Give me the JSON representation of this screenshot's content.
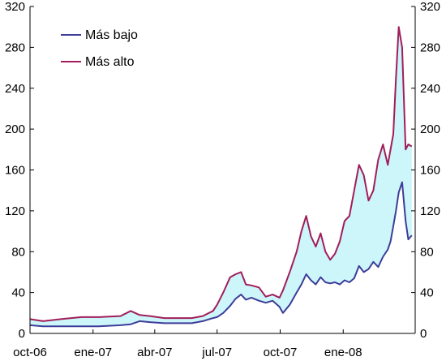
{
  "chart_data": {
    "type": "line",
    "title": "",
    "xlabel": "",
    "ylabel": "",
    "ylim": [
      0,
      320
    ],
    "yticks": [
      0,
      40,
      80,
      120,
      160,
      200,
      240,
      280,
      320
    ],
    "ytick_labels": [
      "0",
      "40",
      "80",
      "120",
      "160",
      "200",
      "240",
      "280",
      "320"
    ],
    "y_axis_both_sides": true,
    "grid": false,
    "x_range": [
      "2006-10-01",
      "2008-04-15"
    ],
    "xticks": [
      "2006-10-01",
      "2007-01-01",
      "2007-04-01",
      "2007-07-01",
      "2007-10-01",
      "2008-01-01"
    ],
    "xtick_labels": [
      "oct-06",
      "ene-07",
      "abr-07",
      "jul-07",
      "oct-07",
      "ene-08"
    ],
    "legend": {
      "position": "top-left"
    },
    "band_fill": "#ccf6fa",
    "series": [
      {
        "name": "Más bajo",
        "color": "#3d3d99",
        "x": [
          "2006-10-01",
          "2006-10-20",
          "2006-11-15",
          "2006-12-15",
          "2007-01-10",
          "2007-02-10",
          "2007-02-25",
          "2007-03-10",
          "2007-03-25",
          "2007-04-15",
          "2007-05-10",
          "2007-05-25",
          "2007-06-10",
          "2007-06-25",
          "2007-07-01",
          "2007-07-10",
          "2007-07-20",
          "2007-07-28",
          "2007-08-05",
          "2007-08-12",
          "2007-08-20",
          "2007-08-31",
          "2007-09-10",
          "2007-09-20",
          "2007-09-30",
          "2007-10-05",
          "2007-10-15",
          "2007-10-25",
          "2007-11-01",
          "2007-11-08",
          "2007-11-15",
          "2007-11-22",
          "2007-11-29",
          "2007-12-06",
          "2007-12-13",
          "2007-12-20",
          "2007-12-27",
          "2008-01-03",
          "2008-01-10",
          "2008-01-17",
          "2008-01-24",
          "2008-01-31",
          "2008-02-07",
          "2008-02-14",
          "2008-02-21",
          "2008-02-28",
          "2008-03-06",
          "2008-03-10",
          "2008-03-14",
          "2008-03-18",
          "2008-03-22",
          "2008-03-27",
          "2008-04-01",
          "2008-04-05",
          "2008-04-10"
        ],
        "values": [
          8,
          7,
          7,
          7,
          7,
          8,
          9,
          12,
          11,
          10,
          10,
          10,
          12,
          15,
          16,
          20,
          27,
          34,
          38,
          33,
          35,
          32,
          30,
          32,
          26,
          20,
          28,
          40,
          48,
          58,
          52,
          48,
          55,
          50,
          49,
          50,
          48,
          52,
          50,
          54,
          66,
          60,
          63,
          70,
          65,
          75,
          82,
          90,
          105,
          120,
          138,
          148,
          110,
          92,
          96
        ]
      },
      {
        "name": "Más alto",
        "color": "#a01e5a",
        "x": [
          "2006-10-01",
          "2006-10-20",
          "2006-11-15",
          "2006-12-15",
          "2007-01-10",
          "2007-02-10",
          "2007-02-25",
          "2007-03-10",
          "2007-03-25",
          "2007-04-15",
          "2007-05-10",
          "2007-05-25",
          "2007-06-10",
          "2007-06-25",
          "2007-07-01",
          "2007-07-10",
          "2007-07-20",
          "2007-07-28",
          "2007-08-05",
          "2007-08-12",
          "2007-08-20",
          "2007-08-31",
          "2007-09-10",
          "2007-09-20",
          "2007-09-30",
          "2007-10-05",
          "2007-10-15",
          "2007-10-25",
          "2007-11-01",
          "2007-11-08",
          "2007-11-15",
          "2007-11-22",
          "2007-11-29",
          "2007-12-06",
          "2007-12-13",
          "2007-12-20",
          "2007-12-27",
          "2008-01-03",
          "2008-01-10",
          "2008-01-17",
          "2008-01-24",
          "2008-01-31",
          "2008-02-07",
          "2008-02-14",
          "2008-02-21",
          "2008-02-28",
          "2008-03-06",
          "2008-03-10",
          "2008-03-14",
          "2008-03-18",
          "2008-03-22",
          "2008-03-27",
          "2008-04-01",
          "2008-04-05",
          "2008-04-10"
        ],
        "values": [
          14,
          12,
          14,
          16,
          16,
          17,
          22,
          18,
          17,
          15,
          15,
          15,
          17,
          22,
          28,
          40,
          55,
          58,
          60,
          48,
          47,
          45,
          36,
          38,
          35,
          42,
          60,
          80,
          100,
          115,
          95,
          85,
          98,
          80,
          72,
          78,
          90,
          110,
          115,
          140,
          165,
          155,
          130,
          140,
          170,
          185,
          165,
          180,
          195,
          250,
          300,
          280,
          180,
          185,
          183
        ]
      }
    ]
  }
}
